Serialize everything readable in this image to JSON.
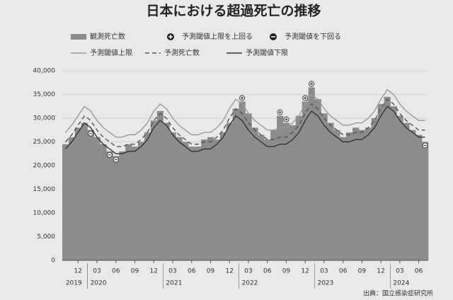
{
  "chart_data": {
    "type": "bar",
    "title": "日本における超過死亡の推移",
    "source": "出典：国立感染症研究所",
    "categories": [
      null,
      null,
      "12",
      null,
      null,
      "03",
      null,
      null,
      "06",
      null,
      null,
      "09",
      null,
      null,
      "12",
      null,
      null,
      "03",
      null,
      null,
      "06",
      null,
      null,
      "09",
      null,
      null,
      "12",
      null,
      null,
      "03",
      null,
      null,
      "06",
      null,
      null,
      "09",
      null,
      null,
      "12",
      null,
      null,
      "03",
      null,
      null,
      "06",
      null,
      null,
      "09",
      null,
      null,
      "12",
      null,
      null,
      "03",
      null,
      null,
      "06",
      null
    ],
    "years": [
      "2019",
      "2020",
      "2021",
      "2022",
      "2023",
      "2024"
    ],
    "ylim": [
      0,
      40000
    ],
    "yticks": [
      0,
      {
        "value": 5000,
        "label": "5,000"
      },
      {
        "value": 10000,
        "label": "10,000"
      },
      {
        "value": 15000,
        "label": "15,000"
      },
      {
        "value": 20000,
        "label": "20,000"
      },
      {
        "value": 25000,
        "label": "25,000"
      },
      {
        "value": 30000,
        "label": "30,000"
      },
      {
        "value": 35000,
        "label": "35,000"
      },
      {
        "value": 40000,
        "label": "40,000"
      }
    ],
    "grid": true,
    "series": [
      {
        "name": "観測死亡数",
        "type": "bar",
        "color": "#8c8c8c",
        "values": [
          24500,
          26000,
          28000,
          29000,
          27500,
          26000,
          24500,
          23000,
          22000,
          23000,
          24500,
          24000,
          25000,
          27000,
          29500,
          31500,
          29000,
          27000,
          26000,
          25000,
          24000,
          24000,
          25500,
          26000,
          25500,
          27000,
          29000,
          32000,
          33500,
          31000,
          28000,
          26500,
          25500,
          27500,
          30500,
          29000,
          28500,
          30500,
          33500,
          36500,
          34000,
          31000,
          29000,
          27500,
          26000,
          27000,
          28000,
          27500,
          28000,
          30000,
          33000,
          34500,
          32500,
          30500,
          29000,
          27500,
          26500,
          25000
        ]
      },
      {
        "name": "予測死亡数",
        "type": "line",
        "dash": "6 4",
        "color": "#555555",
        "values": [
          25000,
          26500,
          28500,
          30500,
          29500,
          27500,
          26000,
          25000,
          24000,
          24000,
          24500,
          24500,
          25500,
          27000,
          29500,
          31000,
          30000,
          28000,
          26500,
          25500,
          24500,
          24500,
          25000,
          25000,
          26000,
          27500,
          30000,
          32000,
          31000,
          29000,
          27500,
          26500,
          25500,
          25500,
          26000,
          26000,
          27000,
          28500,
          31000,
          33000,
          32000,
          30000,
          28500,
          27500,
          26500,
          26500,
          27000,
          27000,
          28000,
          29500,
          32000,
          34000,
          33000,
          31000,
          29500,
          28500,
          27500,
          27500
        ]
      },
      {
        "name": "予測閾値上限",
        "type": "line",
        "color": "#9a9a9a",
        "values": [
          27000,
          28500,
          30500,
          32500,
          31500,
          29500,
          28000,
          27000,
          26000,
          26000,
          26500,
          26500,
          27500,
          29000,
          31500,
          33000,
          32000,
          30000,
          28500,
          27500,
          26500,
          26500,
          27000,
          27000,
          28000,
          29500,
          32000,
          34000,
          33000,
          31000,
          29500,
          28500,
          27500,
          27500,
          28000,
          28000,
          29000,
          30500,
          33000,
          35000,
          34000,
          32000,
          30500,
          29500,
          28500,
          28500,
          29000,
          29000,
          30000,
          31500,
          34000,
          36000,
          35000,
          33000,
          31500,
          30500,
          29500,
          29500
        ]
      },
      {
        "name": "予測閾値下限",
        "type": "line",
        "color": "#333333",
        "values": [
          23500,
          25000,
          27000,
          29000,
          28000,
          26000,
          24500,
          23500,
          22500,
          22500,
          23000,
          23000,
          24000,
          25500,
          28000,
          29500,
          28500,
          26500,
          25000,
          24000,
          23000,
          23000,
          23500,
          23500,
          24500,
          26000,
          28500,
          30500,
          29500,
          27500,
          26000,
          25000,
          24000,
          24000,
          24500,
          24500,
          25500,
          27000,
          29500,
          31500,
          30500,
          28500,
          27000,
          26000,
          25000,
          25000,
          25500,
          25500,
          26500,
          28000,
          30500,
          32500,
          31500,
          29500,
          28000,
          27000,
          26000,
          26000
        ]
      }
    ],
    "markers": {
      "above": "予測閾値上限を上回る",
      "below": "予測閾値を下回る"
    }
  }
}
